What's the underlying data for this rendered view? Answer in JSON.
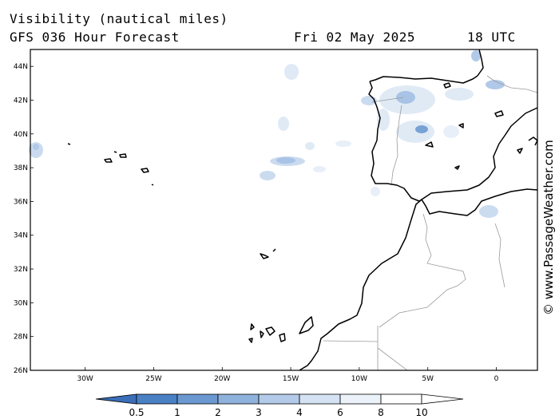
{
  "header": {
    "title": "Visibility (nautical miles)",
    "model": "GFS 036 Hour Forecast",
    "date": "Fri 02 May 2025",
    "time": "18 UTC"
  },
  "credit": "© www.PassageWeather.com",
  "map": {
    "lon_range": [
      -34,
      3
    ],
    "lat_range": [
      26,
      45
    ],
    "lat_ticks": [
      "44N",
      "42N",
      "40N",
      "38N",
      "36N",
      "34N",
      "32N",
      "30N",
      "28N",
      "26N"
    ],
    "lon_ticks": [
      "30W",
      "25W",
      "20W",
      "15W",
      "10W",
      "5W",
      "0"
    ]
  },
  "colorbar": {
    "labels": [
      "0.5",
      "1",
      "2",
      "3",
      "4",
      "6",
      "8",
      "10"
    ],
    "colors": [
      "#3a6fb8",
      "#4a80c4",
      "#6b98d0",
      "#8fb2dc",
      "#b3cbe8",
      "#d4e2f3",
      "#ebf2fa",
      "#ffffff"
    ]
  }
}
